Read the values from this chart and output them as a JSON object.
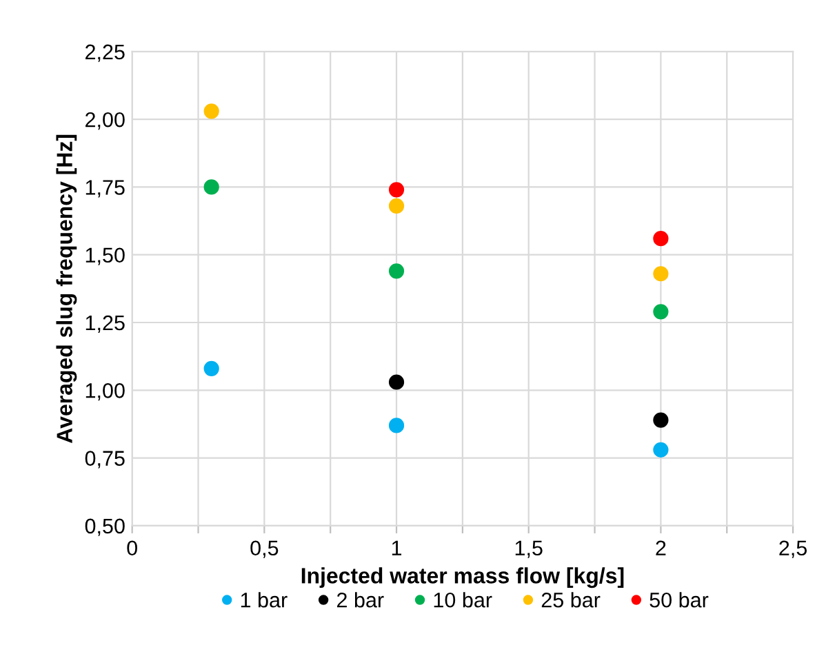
{
  "chart_data": {
    "type": "scatter",
    "xlabel": "Injected water mass flow [kg/s]",
    "ylabel": "Averaged slug frequency [Hz]",
    "series": [
      {
        "name": "1 bar",
        "color": "#00b0f0",
        "x": [
          0.3,
          1,
          2
        ],
        "values": [
          1.08,
          0.87,
          0.78
        ]
      },
      {
        "name": "2 bar",
        "color": "#000000",
        "x": [
          1,
          2
        ],
        "values": [
          1.03,
          0.89
        ]
      },
      {
        "name": "10 bar",
        "color": "#00b050",
        "x": [
          0.3,
          1,
          2
        ],
        "values": [
          1.75,
          1.44,
          1.29
        ]
      },
      {
        "name": "25 bar",
        "color": "#ffc000",
        "x": [
          0.3,
          1,
          2
        ],
        "values": [
          2.03,
          1.68,
          1.43
        ]
      },
      {
        "name": "50 bar",
        "color": "#ff0000",
        "x": [
          1,
          2
        ],
        "values": [
          1.74,
          1.56
        ]
      }
    ],
    "xlim": [
      0,
      2.5
    ],
    "ylim": [
      0.5,
      2.25
    ],
    "xticks": [
      0,
      {
        "value": 0.25,
        "label": null
      },
      {
        "value": 0.5,
        "label": "0,5"
      },
      {
        "value": 0.75,
        "label": null
      },
      1,
      {
        "value": 1.25,
        "label": null
      },
      {
        "value": 1.5,
        "label": "1,5"
      },
      {
        "value": 1.75,
        "label": null
      },
      2,
      {
        "value": 2.25,
        "label": null
      },
      {
        "value": 2.5,
        "label": "2,5"
      }
    ],
    "yticks": [
      {
        "value": 0.5,
        "label": "0,50"
      },
      {
        "value": 0.75,
        "label": "0,75"
      },
      {
        "value": 1.0,
        "label": "1,00"
      },
      {
        "value": 1.25,
        "label": "1,25"
      },
      {
        "value": 1.5,
        "label": "1,50"
      },
      {
        "value": 1.75,
        "label": "1,75"
      },
      {
        "value": 2.0,
        "label": "2,00"
      },
      {
        "value": 2.25,
        "label": "2,25"
      }
    ],
    "grid": true,
    "legend": "bottom",
    "marker": "circle"
  }
}
